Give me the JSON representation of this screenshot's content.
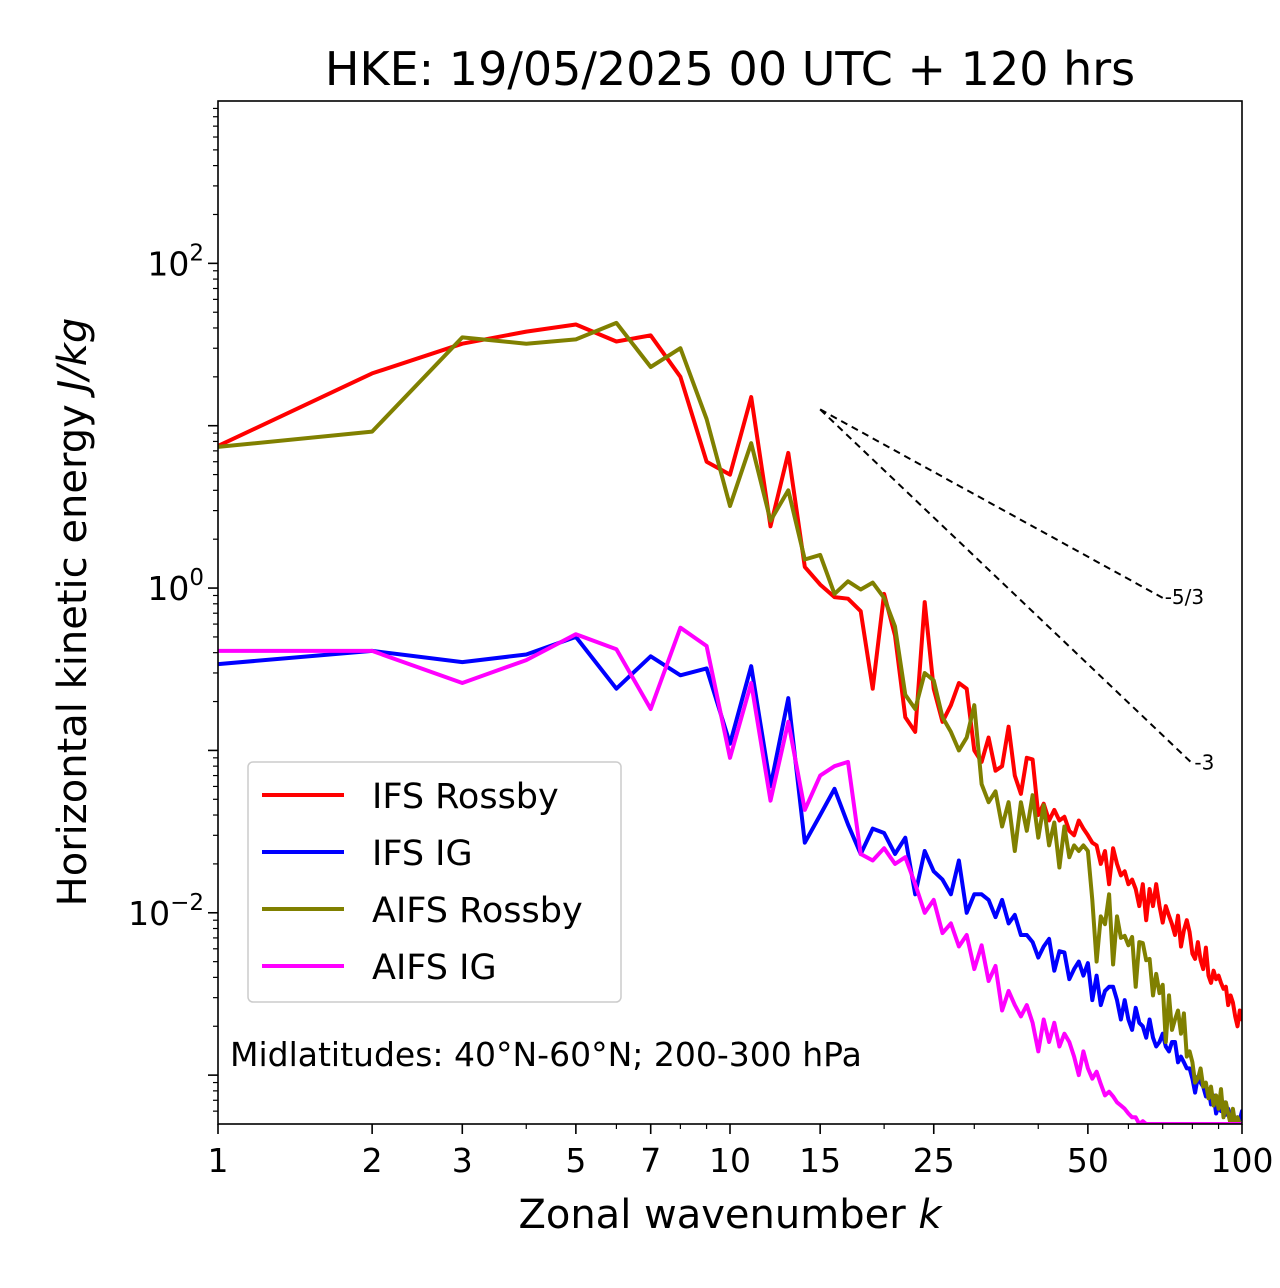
{
  "chart_data": {
    "type": "line",
    "title": "HKE: 19/05/2025 00 UTC + 120 hrs",
    "xlabel_main": "Zonal wavenumber ",
    "xlabel_var": "k",
    "ylabel_main": "Horizontal kinetic energy ",
    "ylabel_var": "J/kg",
    "xscale": "log",
    "yscale": "log",
    "xlim": [
      1,
      100
    ],
    "ylim": [
      0.0005,
      1000
    ],
    "x_ticks": [
      {
        "value": 1,
        "label": "1"
      },
      {
        "value": 2,
        "label": "2"
      },
      {
        "value": 3,
        "label": "3"
      },
      {
        "value": 5,
        "label": "5"
      },
      {
        "value": 7,
        "label": "7"
      },
      {
        "value": 10,
        "label": "10"
      },
      {
        "value": 15,
        "label": "15"
      },
      {
        "value": 25,
        "label": "25"
      },
      {
        "value": 50,
        "label": "50"
      },
      {
        "value": 100,
        "label": "100"
      }
    ],
    "y_ticks": [
      {
        "value": 0.01,
        "base": "10",
        "exp": "−2"
      },
      {
        "value": 1,
        "base": "10",
        "exp": "0"
      },
      {
        "value": 100,
        "base": "10",
        "exp": "2"
      }
    ],
    "annotation": "Midlatitudes: 40°N-60°N; 200-300 hPa",
    "legend_position": "lower-left",
    "reference_lines": [
      {
        "label": "-5/3",
        "x": [
          15,
          70
        ],
        "y": [
          12.6,
          0.87
        ]
      },
      {
        "label": "-3",
        "x": [
          15,
          80
        ],
        "y": [
          12.6,
          0.083
        ]
      }
    ],
    "x": [
      1,
      2,
      3,
      4,
      5,
      6,
      7,
      8,
      9,
      10,
      11,
      12,
      13,
      14,
      15,
      16,
      17,
      18,
      19,
      20,
      21,
      22,
      23,
      24,
      25,
      26,
      27,
      28,
      29,
      30,
      31,
      32,
      33,
      34,
      35,
      36,
      37,
      38,
      39,
      40,
      41,
      42,
      43,
      44,
      45,
      46,
      47,
      48,
      49,
      50,
      51,
      52,
      53,
      54,
      55,
      56,
      57,
      58,
      59,
      60,
      61,
      62,
      63,
      64,
      65,
      66,
      67,
      68,
      69,
      70,
      71,
      72,
      73,
      74,
      75,
      76,
      77,
      78,
      79,
      80,
      81,
      82,
      83,
      84,
      85,
      86,
      87,
      88,
      89,
      90,
      91,
      92,
      93,
      94,
      95,
      96,
      97,
      98,
      99,
      100
    ],
    "series": [
      {
        "name": "IFS Rossby",
        "color": "#ff0000",
        "values": [
          7.5,
          21,
          32,
          38,
          42,
          33,
          36,
          20,
          6.0,
          5.0,
          15,
          2.4,
          6.8,
          1.35,
          1.05,
          0.88,
          0.86,
          0.72,
          0.24,
          0.92,
          0.51,
          0.16,
          0.13,
          0.82,
          0.24,
          0.15,
          0.19,
          0.26,
          0.24,
          0.1,
          0.085,
          0.12,
          0.075,
          0.08,
          0.14,
          0.07,
          0.054,
          0.09,
          0.088,
          0.04,
          0.047,
          0.037,
          0.043,
          0.037,
          0.039,
          0.032,
          0.03,
          0.037,
          0.033,
          0.03,
          0.027,
          0.026,
          0.02,
          0.024,
          0.015,
          0.025,
          0.02,
          0.017,
          0.018,
          0.015,
          0.016,
          0.014,
          0.011,
          0.015,
          0.009,
          0.014,
          0.011,
          0.015,
          0.011,
          0.0087,
          0.011,
          0.0096,
          0.0085,
          0.0073,
          0.0096,
          0.0062,
          0.0078,
          0.009,
          0.0076,
          0.0056,
          0.0052,
          0.0066,
          0.0051,
          0.0045,
          0.0061,
          0.0041,
          0.0037,
          0.0044,
          0.0039,
          0.0041,
          0.0037,
          0.0034,
          0.0035,
          0.0027,
          0.0031,
          0.0028,
          0.0023,
          0.002,
          0.0025,
          0.0022
        ]
      },
      {
        "name": "IFS IG",
        "color": "#0000ff",
        "values": [
          0.34,
          0.41,
          0.35,
          0.39,
          0.5,
          0.24,
          0.38,
          0.29,
          0.32,
          0.11,
          0.33,
          0.06,
          0.21,
          0.027,
          0.04,
          0.058,
          0.035,
          0.023,
          0.033,
          0.031,
          0.023,
          0.029,
          0.013,
          0.024,
          0.018,
          0.016,
          0.013,
          0.021,
          0.01,
          0.013,
          0.013,
          0.012,
          0.0094,
          0.012,
          0.0086,
          0.0097,
          0.0073,
          0.0073,
          0.0066,
          0.0053,
          0.0062,
          0.0069,
          0.0044,
          0.0058,
          0.0057,
          0.0039,
          0.0045,
          0.005,
          0.0041,
          0.0049,
          0.0029,
          0.0041,
          0.0027,
          0.0033,
          0.0035,
          0.0035,
          0.0029,
          0.0022,
          0.0029,
          0.0022,
          0.0019,
          0.0026,
          0.0021,
          0.002,
          0.0017,
          0.0022,
          0.0017,
          0.0015,
          0.0016,
          0.0018,
          0.0015,
          0.0014,
          0.0016,
          0.0016,
          0.0012,
          0.0013,
          0.0012,
          0.0011,
          0.0011,
          0.00095,
          0.00078,
          0.00098,
          0.0009,
          0.00085,
          0.00074,
          0.00082,
          0.00066,
          0.00075,
          0.00058,
          0.00065,
          0.0006,
          0.00068,
          0.00057,
          0.00062,
          0.00055,
          0.0006,
          0.0005,
          0.00055,
          0.00053,
          0.0006
        ]
      },
      {
        "name": "AIFS Rossby",
        "color": "#808000",
        "values": [
          7.4,
          9.2,
          35,
          32,
          34,
          43,
          23,
          30,
          11,
          3.2,
          7.8,
          2.6,
          4.0,
          1.5,
          1.6,
          0.92,
          1.1,
          0.98,
          1.08,
          0.87,
          0.58,
          0.22,
          0.18,
          0.3,
          0.27,
          0.16,
          0.13,
          0.1,
          0.12,
          0.19,
          0.062,
          0.048,
          0.056,
          0.034,
          0.048,
          0.024,
          0.048,
          0.032,
          0.053,
          0.029,
          0.046,
          0.026,
          0.036,
          0.019,
          0.034,
          0.022,
          0.026,
          0.024,
          0.026,
          0.024,
          0.012,
          0.005,
          0.0095,
          0.0085,
          0.013,
          0.0048,
          0.0095,
          0.007,
          0.0072,
          0.0063,
          0.0071,
          0.0035,
          0.0066,
          0.0065,
          0.0051,
          0.0052,
          0.0031,
          0.0042,
          0.0032,
          0.0036,
          0.0016,
          0.0031,
          0.0019,
          0.0022,
          0.0025,
          0.0018,
          0.0024,
          0.0013,
          0.0014,
          0.0012,
          0.0009,
          0.00095,
          0.0011,
          0.00085,
          0.0009,
          0.00072,
          0.00085,
          0.00065,
          0.00075,
          0.00062,
          0.00082,
          0.00055,
          0.00068,
          0.00058,
          0.0005,
          0.00062,
          0.0005,
          0.00055,
          0.0005,
          0.0005
        ]
      },
      {
        "name": "AIFS IG",
        "color": "#ff00ff",
        "values": [
          0.41,
          0.41,
          0.26,
          0.36,
          0.52,
          0.42,
          0.18,
          0.57,
          0.44,
          0.09,
          0.26,
          0.049,
          0.15,
          0.043,
          0.07,
          0.08,
          0.085,
          0.023,
          0.021,
          0.025,
          0.02,
          0.022,
          0.015,
          0.01,
          0.012,
          0.0075,
          0.0086,
          0.0062,
          0.0073,
          0.0045,
          0.0063,
          0.0038,
          0.0047,
          0.0025,
          0.0033,
          0.0027,
          0.0023,
          0.0027,
          0.0021,
          0.0014,
          0.0022,
          0.0016,
          0.0021,
          0.0015,
          0.0018,
          0.0016,
          0.0013,
          0.001,
          0.0014,
          0.0011,
          0.00095,
          0.00105,
          0.00088,
          0.00075,
          0.00079,
          0.00074,
          0.00068,
          0.00065,
          0.00062,
          0.00058,
          0.00055,
          0.00055,
          0.0005,
          0.00052,
          0.0005,
          0.0005,
          0.0005,
          0.0005,
          0.0005,
          0.0005,
          0.0005,
          0.0005,
          0.0005,
          0.0005,
          0.0005,
          0.0005,
          0.0005,
          0.0005,
          0.0005,
          0.0005,
          0.0005,
          0.0005,
          0.0005,
          0.0005,
          0.0005,
          0.0005,
          0.0005,
          0.0005,
          0.0005,
          0.0005,
          0.0005,
          0.0005,
          0.0005,
          0.0005,
          0.0005,
          0.0005,
          0.0005,
          0.0005,
          0.0005,
          0.0005
        ]
      }
    ]
  }
}
